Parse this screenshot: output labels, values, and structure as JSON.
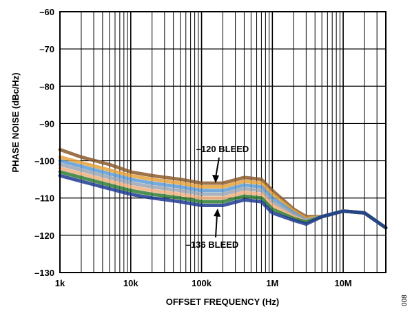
{
  "chart_data": {
    "type": "line",
    "xlabel": "OFFSET FREQUENCY (Hz)",
    "ylabel": "PHASE NOISE (dBc/Hz)",
    "xscale": "log",
    "xlim": [
      1000,
      40000000
    ],
    "ylim": [
      -130,
      -60
    ],
    "x_ticks": [
      1000,
      10000,
      100000,
      1000000,
      10000000
    ],
    "x_tick_labels": [
      "1k",
      "10k",
      "100k",
      "1M",
      "10M"
    ],
    "y_ticks": [
      -60,
      -70,
      -80,
      -90,
      -100,
      -110,
      -120,
      -130
    ],
    "y_tick_labels": [
      "–60",
      "–70",
      "–80",
      "–90",
      "–100",
      "–110",
      "–120",
      "–130"
    ],
    "grid": true,
    "annotations": [
      {
        "text": "–120 BLEED",
        "points_to": {
          "x": 170000,
          "y": -107
        }
      },
      {
        "text": "–136 BLEED",
        "points_to": {
          "x": 170000,
          "y": -112
        }
      }
    ],
    "figure_id": "008",
    "series": [
      {
        "color": "#8b5a2b",
        "x": [
          1000,
          2000,
          5000,
          10000,
          20000,
          50000,
          100000,
          200000,
          400000,
          700000,
          1000000,
          2000000,
          3000000,
          5000000,
          10000000,
          20000000,
          40000000
        ],
        "y": [
          -97,
          -99,
          -101,
          -103,
          -104,
          -105,
          -106,
          -106,
          -104.5,
          -105,
          -108,
          -113,
          -115,
          -115,
          -113.5,
          -114,
          -118
        ]
      },
      {
        "color": "#e6a23c",
        "x": [
          1000,
          2000,
          5000,
          10000,
          20000,
          50000,
          100000,
          200000,
          400000,
          700000,
          1000000,
          2000000,
          3000000,
          5000000,
          10000000,
          20000000,
          40000000
        ],
        "y": [
          -99,
          -100.5,
          -102.5,
          -104,
          -105,
          -106,
          -107,
          -107,
          -105.5,
          -106,
          -109,
          -113.5,
          -115.5,
          -115,
          -113.5,
          -114,
          -118
        ]
      },
      {
        "color": "#5a9bd5",
        "x": [
          1000,
          2000,
          5000,
          10000,
          20000,
          50000,
          100000,
          200000,
          400000,
          700000,
          1000000,
          2000000,
          3000000,
          5000000,
          10000000,
          20000000,
          40000000
        ],
        "y": [
          -100,
          -101.5,
          -103.5,
          -105,
          -106,
          -107,
          -108,
          -108,
          -106.5,
          -107,
          -110,
          -114,
          -116,
          -115,
          -113.5,
          -114,
          -118
        ]
      },
      {
        "color": "#9aa5b1",
        "x": [
          1000,
          2000,
          5000,
          10000,
          20000,
          50000,
          100000,
          200000,
          400000,
          700000,
          1000000,
          2000000,
          3000000,
          5000000,
          10000000,
          20000000,
          40000000
        ],
        "y": [
          -101,
          -102.5,
          -104.5,
          -106,
          -107,
          -108,
          -109,
          -109,
          -107.5,
          -108,
          -111,
          -114.5,
          -116,
          -115,
          -113.5,
          -114,
          -118
        ]
      },
      {
        "color": "#f0b080",
        "x": [
          1000,
          2000,
          5000,
          10000,
          20000,
          50000,
          100000,
          200000,
          400000,
          700000,
          1000000,
          2000000,
          3000000,
          5000000,
          10000000,
          20000000,
          40000000
        ],
        "y": [
          -102,
          -103.5,
          -105.5,
          -107,
          -108,
          -109,
          -110,
          -110,
          -108.5,
          -109,
          -112,
          -115,
          -116.5,
          -115,
          -113.5,
          -114,
          -118
        ]
      },
      {
        "color": "#2e7d32",
        "x": [
          1000,
          2000,
          5000,
          10000,
          20000,
          50000,
          100000,
          200000,
          400000,
          700000,
          1000000,
          2000000,
          3000000,
          5000000,
          10000000,
          20000000,
          40000000
        ],
        "y": [
          -103,
          -104.5,
          -106.5,
          -108,
          -109,
          -110,
          -111,
          -111,
          -109.5,
          -110,
          -113,
          -115.5,
          -116.5,
          -115,
          -113.5,
          -114,
          -118
        ]
      },
      {
        "color": "#1f3a93",
        "x": [
          1000,
          2000,
          5000,
          10000,
          20000,
          50000,
          100000,
          200000,
          400000,
          700000,
          1000000,
          2000000,
          3000000,
          5000000,
          10000000,
          20000000,
          40000000
        ],
        "y": [
          -104,
          -105.5,
          -107.5,
          -109,
          -110,
          -111,
          -112,
          -112,
          -110.5,
          -111,
          -114,
          -116,
          -117,
          -115,
          -113.5,
          -114,
          -118
        ]
      }
    ]
  }
}
